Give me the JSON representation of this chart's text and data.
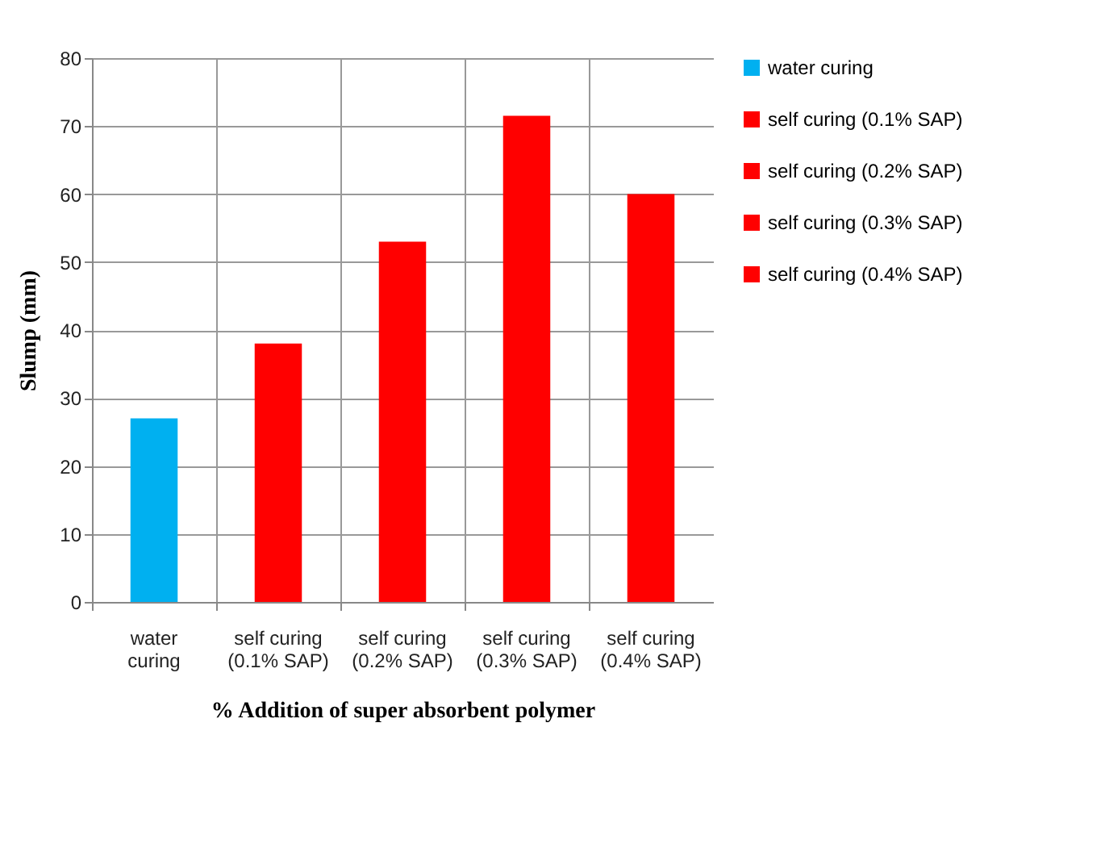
{
  "chart_data": {
    "type": "bar",
    "xlabel": "% Addition of super absorbent polymer",
    "ylabel": "Slump (mm)",
    "categories": [
      "water curing",
      "self curing (0.1% SAP)",
      "self curing (0.2% SAP)",
      "self curing (0.3% SAP)",
      "self curing (0.4% SAP)"
    ],
    "series": [
      {
        "name": "water curing",
        "color": "#00b0f0",
        "values": [
          27,
          null,
          null,
          null,
          null
        ]
      },
      {
        "name": "self curing (0.1% SAP)",
        "color": "#ff0000",
        "values": [
          null,
          38,
          null,
          null,
          null
        ]
      },
      {
        "name": "self curing (0.2% SAP)",
        "color": "#ff0000",
        "values": [
          null,
          null,
          53,
          null,
          null
        ]
      },
      {
        "name": "self curing (0.3% SAP)",
        "color": "#ff0000",
        "values": [
          null,
          null,
          null,
          71.5,
          null
        ]
      },
      {
        "name": "self curing (0.4% SAP)",
        "color": "#ff0000",
        "values": [
          null,
          null,
          null,
          null,
          60
        ]
      }
    ],
    "ylim": [
      0,
      80
    ],
    "yticks": [
      0,
      10,
      20,
      30,
      40,
      50,
      60,
      70,
      80
    ],
    "grid": true,
    "legend": "right"
  }
}
